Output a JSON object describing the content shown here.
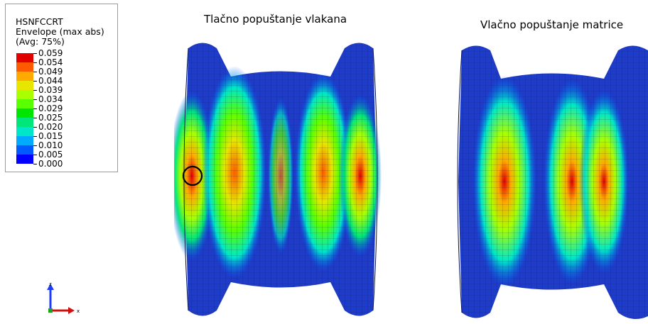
{
  "legend": {
    "variable": "HSNFCCRT",
    "envelope": "Envelope (max abs)",
    "averaging": "(Avg: 75%)",
    "values": [
      "0.059",
      "0.054",
      "0.049",
      "0.044",
      "0.039",
      "0.034",
      "0.029",
      "0.025",
      "0.020",
      "0.015",
      "0.010",
      "0.005",
      "0.000"
    ],
    "colors": [
      "#e00000",
      "#ff5a00",
      "#ffaa00",
      "#e6e600",
      "#aaff00",
      "#5aff00",
      "#00e600",
      "#00e67a",
      "#00e6c8",
      "#00aaff",
      "#005aff",
      "#0000ff"
    ]
  },
  "panels": {
    "left_title": "Tlačno popuštanje vlakana",
    "right_title": "Vlačno popuštanje matrice"
  },
  "triad": {
    "z_label": "z",
    "x_label": "x"
  },
  "colors": {
    "mesh_blue": "#1e3cc8",
    "background": "#ffffff"
  }
}
